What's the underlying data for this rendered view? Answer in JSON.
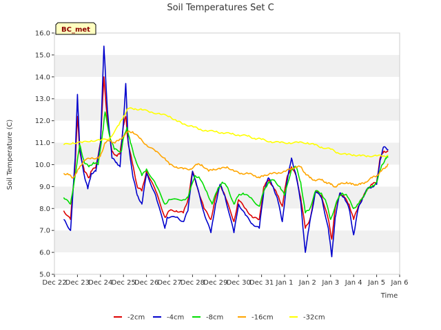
{
  "chart_data": {
    "type": "line",
    "title": "Soil Temperatures Set C",
    "xlabel": "Time",
    "ylabel": "Soil Temperature (C)",
    "ylim": [
      5.0,
      16.0
    ],
    "xlim": [
      0,
      15
    ],
    "grid": "horizontal-bands",
    "legend_position": "bottom",
    "badge": "BC_met",
    "y_ticks": [
      "5.0",
      "6.0",
      "7.0",
      "8.0",
      "9.0",
      "10.0",
      "11.0",
      "12.0",
      "13.0",
      "14.0",
      "15.0",
      "16.0"
    ],
    "x_ticks": [
      "Dec 22",
      "Dec 23",
      "Dec 24",
      "Dec 25",
      "Dec 26",
      "Dec 27",
      "Dec 28",
      "Dec 29",
      "Dec 30",
      "Dec 31",
      "Jan 1",
      "Jan 2",
      "Jan 3",
      "Jan 4",
      "Jan 5",
      "Jan 6"
    ],
    "series": [
      {
        "name": "-2cm",
        "color": "#dd0000",
        "points": [
          [
            0.4,
            7.9
          ],
          [
            0.7,
            7.5
          ],
          [
            0.9,
            10.0
          ],
          [
            1.0,
            12.2
          ],
          [
            1.1,
            10.6
          ],
          [
            1.3,
            9.7
          ],
          [
            1.5,
            9.4
          ],
          [
            1.6,
            9.7
          ],
          [
            1.8,
            9.9
          ],
          [
            2.0,
            11.0
          ],
          [
            2.15,
            14.0
          ],
          [
            2.3,
            12.0
          ],
          [
            2.5,
            10.6
          ],
          [
            2.7,
            10.4
          ],
          [
            2.85,
            10.5
          ],
          [
            3.0,
            11.8
          ],
          [
            3.1,
            12.2
          ],
          [
            3.2,
            11.0
          ],
          [
            3.4,
            10.0
          ],
          [
            3.6,
            9.0
          ],
          [
            3.8,
            8.8
          ],
          [
            4.0,
            9.7
          ],
          [
            4.4,
            8.8
          ],
          [
            4.8,
            7.6
          ],
          [
            5.0,
            7.9
          ],
          [
            5.3,
            7.9
          ],
          [
            5.6,
            7.8
          ],
          [
            5.8,
            8.4
          ],
          [
            6.0,
            9.7
          ],
          [
            6.2,
            9.0
          ],
          [
            6.5,
            8.0
          ],
          [
            6.8,
            7.5
          ],
          [
            7.0,
            8.5
          ],
          [
            7.2,
            9.1
          ],
          [
            7.4,
            8.6
          ],
          [
            7.8,
            7.4
          ],
          [
            8.0,
            8.4
          ],
          [
            8.3,
            8.0
          ],
          [
            8.6,
            7.6
          ],
          [
            8.9,
            7.5
          ],
          [
            9.1,
            9.0
          ],
          [
            9.3,
            9.3
          ],
          [
            9.5,
            9.0
          ],
          [
            9.7,
            8.6
          ],
          [
            9.9,
            8.1
          ],
          [
            10.1,
            9.4
          ],
          [
            10.3,
            9.9
          ],
          [
            10.5,
            9.5
          ],
          [
            10.7,
            8.5
          ],
          [
            10.9,
            7.1
          ],
          [
            11.1,
            7.5
          ],
          [
            11.35,
            8.8
          ],
          [
            11.6,
            8.6
          ],
          [
            11.9,
            7.5
          ],
          [
            12.05,
            6.6
          ],
          [
            12.2,
            8.0
          ],
          [
            12.4,
            8.7
          ],
          [
            12.6,
            8.5
          ],
          [
            12.8,
            8.2
          ],
          [
            13.0,
            7.5
          ],
          [
            13.2,
            8.1
          ],
          [
            13.4,
            8.5
          ],
          [
            13.6,
            8.9
          ],
          [
            13.8,
            9.1
          ],
          [
            14.0,
            9.2
          ],
          [
            14.15,
            10.3
          ],
          [
            14.3,
            10.6
          ],
          [
            14.5,
            10.6
          ]
        ]
      },
      {
        "name": "-4cm",
        "color": "#0000cc",
        "points": [
          [
            0.4,
            7.5
          ],
          [
            0.7,
            7.0
          ],
          [
            0.9,
            10.3
          ],
          [
            1.0,
            13.2
          ],
          [
            1.1,
            10.7
          ],
          [
            1.3,
            9.5
          ],
          [
            1.45,
            8.9
          ],
          [
            1.6,
            9.6
          ],
          [
            1.8,
            9.7
          ],
          [
            2.0,
            11.0
          ],
          [
            2.15,
            15.4
          ],
          [
            2.3,
            12.5
          ],
          [
            2.5,
            10.3
          ],
          [
            2.7,
            10.1
          ],
          [
            2.85,
            9.9
          ],
          [
            3.0,
            12.0
          ],
          [
            3.1,
            13.7
          ],
          [
            3.2,
            11.1
          ],
          [
            3.4,
            9.5
          ],
          [
            3.6,
            8.6
          ],
          [
            3.8,
            8.2
          ],
          [
            4.0,
            9.6
          ],
          [
            4.4,
            8.6
          ],
          [
            4.8,
            7.1
          ],
          [
            4.9,
            7.6
          ],
          [
            5.3,
            7.6
          ],
          [
            5.6,
            7.4
          ],
          [
            5.8,
            7.9
          ],
          [
            6.0,
            9.7
          ],
          [
            6.2,
            9.0
          ],
          [
            6.5,
            7.8
          ],
          [
            6.8,
            6.9
          ],
          [
            7.0,
            8.2
          ],
          [
            7.2,
            9.1
          ],
          [
            7.4,
            8.6
          ],
          [
            7.8,
            6.9
          ],
          [
            8.0,
            8.2
          ],
          [
            8.3,
            7.7
          ],
          [
            8.6,
            7.3
          ],
          [
            8.9,
            7.1
          ],
          [
            9.1,
            8.8
          ],
          [
            9.3,
            9.4
          ],
          [
            9.5,
            9.0
          ],
          [
            9.7,
            8.4
          ],
          [
            9.9,
            7.4
          ],
          [
            10.1,
            9.2
          ],
          [
            10.3,
            10.3
          ],
          [
            10.5,
            9.5
          ],
          [
            10.7,
            8.3
          ],
          [
            10.9,
            6.0
          ],
          [
            11.1,
            7.4
          ],
          [
            11.35,
            8.8
          ],
          [
            11.6,
            8.5
          ],
          [
            11.9,
            7.1
          ],
          [
            12.05,
            5.8
          ],
          [
            12.2,
            7.6
          ],
          [
            12.4,
            8.7
          ],
          [
            12.6,
            8.5
          ],
          [
            12.8,
            8.0
          ],
          [
            13.0,
            6.8
          ],
          [
            13.2,
            8.0
          ],
          [
            13.4,
            8.5
          ],
          [
            13.6,
            8.9
          ],
          [
            13.8,
            9.0
          ],
          [
            14.0,
            9.1
          ],
          [
            14.15,
            10.2
          ],
          [
            14.3,
            10.8
          ],
          [
            14.5,
            10.7
          ]
        ]
      },
      {
        "name": "-8cm",
        "color": "#00dd00",
        "points": [
          [
            0.4,
            8.5
          ],
          [
            0.7,
            8.2
          ],
          [
            0.9,
            9.5
          ],
          [
            1.1,
            10.9
          ],
          [
            1.3,
            10.1
          ],
          [
            1.5,
            9.9
          ],
          [
            1.7,
            10.1
          ],
          [
            1.9,
            10.0
          ],
          [
            2.1,
            11.5
          ],
          [
            2.2,
            12.4
          ],
          [
            2.4,
            11.3
          ],
          [
            2.6,
            10.7
          ],
          [
            2.9,
            10.6
          ],
          [
            3.0,
            11.2
          ],
          [
            3.15,
            11.7
          ],
          [
            3.3,
            11.0
          ],
          [
            3.5,
            10.3
          ],
          [
            3.8,
            9.5
          ],
          [
            4.0,
            9.8
          ],
          [
            4.4,
            9.1
          ],
          [
            4.8,
            8.2
          ],
          [
            5.0,
            8.4
          ],
          [
            5.6,
            8.4
          ],
          [
            5.8,
            8.5
          ],
          [
            6.1,
            9.5
          ],
          [
            6.3,
            9.4
          ],
          [
            6.6,
            8.8
          ],
          [
            6.85,
            8.2
          ],
          [
            7.1,
            8.9
          ],
          [
            7.3,
            9.2
          ],
          [
            7.5,
            9.0
          ],
          [
            7.8,
            8.2
          ],
          [
            8.0,
            8.6
          ],
          [
            8.2,
            8.7
          ],
          [
            8.5,
            8.5
          ],
          [
            8.9,
            8.1
          ],
          [
            9.1,
            8.8
          ],
          [
            9.3,
            9.2
          ],
          [
            9.5,
            9.3
          ],
          [
            9.8,
            9.0
          ],
          [
            10.0,
            8.6
          ],
          [
            10.3,
            9.8
          ],
          [
            10.5,
            9.9
          ],
          [
            10.7,
            9.2
          ],
          [
            10.9,
            7.8
          ],
          [
            11.1,
            8.0
          ],
          [
            11.35,
            8.8
          ],
          [
            11.6,
            8.7
          ],
          [
            11.8,
            8.3
          ],
          [
            12.0,
            7.5
          ],
          [
            12.3,
            8.4
          ],
          [
            12.5,
            8.7
          ],
          [
            12.7,
            8.6
          ],
          [
            13.0,
            8.0
          ],
          [
            13.2,
            8.2
          ],
          [
            13.4,
            8.5
          ],
          [
            13.6,
            8.9
          ],
          [
            13.8,
            9.0
          ],
          [
            14.0,
            9.2
          ],
          [
            14.2,
            9.9
          ],
          [
            14.4,
            10.3
          ],
          [
            14.5,
            10.35
          ]
        ]
      },
      {
        "name": "-16cm",
        "color": "#ffa500",
        "points": [
          [
            0.4,
            9.6
          ],
          [
            0.6,
            9.55
          ],
          [
            0.8,
            9.4
          ],
          [
            0.95,
            9.6
          ],
          [
            1.1,
            9.9
          ],
          [
            1.3,
            10.2
          ],
          [
            1.6,
            10.3
          ],
          [
            1.9,
            10.3
          ],
          [
            2.0,
            10.4
          ],
          [
            2.2,
            11.0
          ],
          [
            2.4,
            11.1
          ],
          [
            2.6,
            11.0
          ],
          [
            2.8,
            11.1
          ],
          [
            3.0,
            11.3
          ],
          [
            3.2,
            11.5
          ],
          [
            3.4,
            11.5
          ],
          [
            3.7,
            11.2
          ],
          [
            4.0,
            10.9
          ],
          [
            4.4,
            10.6
          ],
          [
            4.8,
            10.3
          ],
          [
            5.0,
            10.0
          ],
          [
            5.3,
            9.9
          ],
          [
            5.6,
            9.8
          ],
          [
            5.9,
            9.8
          ],
          [
            6.2,
            10.0
          ],
          [
            6.4,
            10.0
          ],
          [
            6.7,
            9.7
          ],
          [
            6.9,
            9.8
          ],
          [
            7.2,
            9.8
          ],
          [
            7.5,
            9.9
          ],
          [
            7.8,
            9.7
          ],
          [
            8.1,
            9.6
          ],
          [
            8.4,
            9.6
          ],
          [
            8.7,
            9.5
          ],
          [
            8.9,
            9.4
          ],
          [
            9.1,
            9.5
          ],
          [
            9.4,
            9.6
          ],
          [
            9.7,
            9.6
          ],
          [
            10.0,
            9.7
          ],
          [
            10.3,
            9.8
          ],
          [
            10.5,
            9.9
          ],
          [
            10.7,
            9.9
          ],
          [
            10.9,
            9.6
          ],
          [
            11.1,
            9.4
          ],
          [
            11.3,
            9.3
          ],
          [
            11.6,
            9.3
          ],
          [
            11.8,
            9.2
          ],
          [
            12.0,
            9.1
          ],
          [
            12.2,
            9.0
          ],
          [
            12.4,
            9.1
          ],
          [
            12.7,
            9.2
          ],
          [
            12.9,
            9.1
          ],
          [
            13.1,
            9.1
          ],
          [
            13.3,
            9.1
          ],
          [
            13.5,
            9.2
          ],
          [
            13.8,
            9.4
          ],
          [
            14.0,
            9.5
          ],
          [
            14.2,
            9.7
          ],
          [
            14.4,
            9.9
          ],
          [
            14.5,
            10.0
          ]
        ]
      },
      {
        "name": "-32cm",
        "color": "#ffff00",
        "points": [
          [
            0.4,
            10.9
          ],
          [
            0.8,
            11.0
          ],
          [
            1.2,
            11.0
          ],
          [
            1.6,
            11.1
          ],
          [
            2.0,
            11.1
          ],
          [
            2.4,
            11.2
          ],
          [
            2.8,
            11.8
          ],
          [
            3.0,
            12.2
          ],
          [
            3.2,
            12.55
          ],
          [
            3.5,
            12.55
          ],
          [
            3.8,
            12.5
          ],
          [
            4.2,
            12.4
          ],
          [
            4.6,
            12.3
          ],
          [
            5.0,
            12.2
          ],
          [
            5.3,
            12.0
          ],
          [
            5.6,
            11.85
          ],
          [
            6.0,
            11.75
          ],
          [
            6.3,
            11.6
          ],
          [
            6.6,
            11.55
          ],
          [
            7.0,
            11.5
          ],
          [
            7.3,
            11.45
          ],
          [
            7.7,
            11.4
          ],
          [
            8.0,
            11.35
          ],
          [
            8.4,
            11.3
          ],
          [
            8.7,
            11.2
          ],
          [
            9.0,
            11.15
          ],
          [
            9.4,
            11.05
          ],
          [
            9.8,
            11.0
          ],
          [
            10.2,
            11.0
          ],
          [
            10.6,
            11.0
          ],
          [
            11.0,
            11.0
          ],
          [
            11.3,
            10.9
          ],
          [
            11.6,
            10.8
          ],
          [
            12.0,
            10.7
          ],
          [
            12.3,
            10.55
          ],
          [
            12.7,
            10.45
          ],
          [
            13.0,
            10.45
          ],
          [
            13.3,
            10.4
          ],
          [
            13.6,
            10.4
          ],
          [
            14.0,
            10.4
          ],
          [
            14.3,
            10.4
          ],
          [
            14.5,
            10.4
          ]
        ]
      }
    ]
  }
}
